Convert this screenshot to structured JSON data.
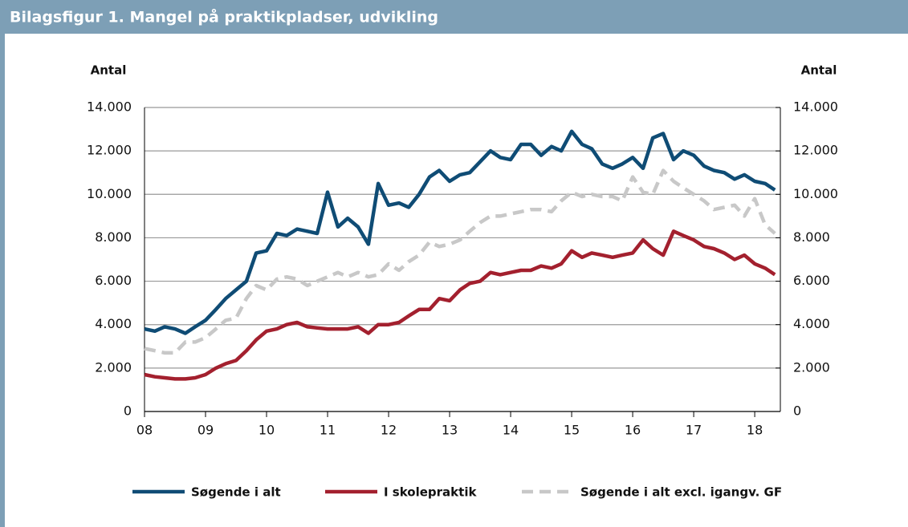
{
  "chart_data": {
    "type": "line",
    "title": "Bilagsfigur 1. Mangel på praktikpladser, udvikling",
    "y_label": "Antal",
    "y2_label": "Antal",
    "x": [
      2008,
      2008.17,
      2008.33,
      2008.5,
      2008.67,
      2008.83,
      2009,
      2009.17,
      2009.33,
      2009.5,
      2009.67,
      2009.83,
      2010,
      2010.17,
      2010.33,
      2010.5,
      2010.67,
      2010.83,
      2011,
      2011.17,
      2011.33,
      2011.5,
      2011.67,
      2011.83,
      2012,
      2012.17,
      2012.33,
      2012.5,
      2012.67,
      2012.83,
      2013,
      2013.17,
      2013.33,
      2013.5,
      2013.67,
      2013.83,
      2014,
      2014.17,
      2014.33,
      2014.5,
      2014.67,
      2014.83,
      2015,
      2015.17,
      2015.33,
      2015.5,
      2015.67,
      2015.83,
      2016,
      2016.17,
      2016.33,
      2016.5,
      2016.67,
      2016.83,
      2017,
      2017.17,
      2017.33,
      2017.5,
      2017.67,
      2017.83,
      2018,
      2018.17,
      2018.33
    ],
    "series": [
      {
        "name": "Søgende i alt",
        "color": "#0f4c75",
        "dashed": false,
        "values": [
          3800,
          3700,
          3900,
          3800,
          3600,
          3900,
          4200,
          4700,
          5200,
          5600,
          6000,
          7300,
          7400,
          8200,
          8100,
          8400,
          8300,
          8200,
          10100,
          8500,
          8900,
          8500,
          7700,
          10500,
          9500,
          9600,
          9400,
          10000,
          10800,
          11100,
          10600,
          10900,
          11000,
          11500,
          12000,
          11700,
          11600,
          12300,
          12300,
          11800,
          12200,
          12000,
          12900,
          12300,
          12100,
          11400,
          11200,
          11400,
          11700,
          11200,
          12600,
          12800,
          11600,
          12000,
          11800,
          11300,
          11100,
          11000,
          10700,
          10900,
          10600,
          10500,
          10200
        ]
      },
      {
        "name": "I skolepraktik",
        "color": "#a3202e",
        "dashed": false,
        "values": [
          1700,
          1600,
          1550,
          1500,
          1500,
          1550,
          1700,
          2000,
          2200,
          2350,
          2800,
          3300,
          3700,
          3800,
          4000,
          4100,
          3900,
          3850,
          3800,
          3800,
          3800,
          3900,
          3600,
          4000,
          4000,
          4100,
          4400,
          4700,
          4700,
          5200,
          5100,
          5600,
          5900,
          6000,
          6400,
          6300,
          6400,
          6500,
          6500,
          6700,
          6600,
          6800,
          7400,
          7100,
          7300,
          7200,
          7100,
          7200,
          7300,
          7900,
          7500,
          7200,
          8300,
          8100,
          7900,
          7600,
          7500,
          7300,
          7000,
          7200,
          6800,
          6600,
          6300
        ]
      },
      {
        "name": "Søgende i alt excl. igangv. GF",
        "color": "#c8c8c8",
        "dashed": true,
        "values": [
          2900,
          2800,
          2700,
          2700,
          3200,
          3200,
          3400,
          3800,
          4200,
          4300,
          5200,
          5800,
          5600,
          6100,
          6200,
          6100,
          5800,
          6000,
          6200,
          6400,
          6200,
          6400,
          6200,
          6300,
          6800,
          6500,
          6900,
          7200,
          7800,
          7600,
          7700,
          7900,
          8300,
          8700,
          9000,
          9000,
          9100,
          9200,
          9300,
          9300,
          9200,
          9700,
          10100,
          9900,
          10000,
          9900,
          9900,
          9700,
          10800,
          10100,
          10000,
          11100,
          10600,
          10300,
          10000,
          9700,
          9300,
          9400,
          9500,
          9000,
          9800,
          8600,
          8200
        ]
      }
    ],
    "xlim": [
      2008,
      2018.42
    ],
    "xticks": [
      {
        "value": 2008,
        "label": "08"
      },
      {
        "value": 2009,
        "label": "09"
      },
      {
        "value": 2010,
        "label": "10"
      },
      {
        "value": 2011,
        "label": "11"
      },
      {
        "value": 2012,
        "label": "12"
      },
      {
        "value": 2013,
        "label": "13"
      },
      {
        "value": 2014,
        "label": "14"
      },
      {
        "value": 2015,
        "label": "15"
      },
      {
        "value": 2016,
        "label": "16"
      },
      {
        "value": 2017,
        "label": "17"
      },
      {
        "value": 2018,
        "label": "18"
      }
    ],
    "ylim": [
      0,
      14000
    ],
    "yticks": [
      0,
      {
        "value": 2000,
        "label": "2.000"
      },
      {
        "value": 4000,
        "label": "4.000"
      },
      {
        "value": 6000,
        "label": "6.000"
      },
      {
        "value": 8000,
        "label": "8.000"
      },
      {
        "value": 10000,
        "label": "10.000"
      },
      {
        "value": 12000,
        "label": "12.000"
      },
      {
        "value": 14000,
        "label": "14.000"
      }
    ],
    "y2lim": [
      0,
      14000
    ],
    "y2ticks": [
      0,
      {
        "value": 2000,
        "label": "2.000"
      },
      {
        "value": 4000,
        "label": "4.000"
      },
      {
        "value": 6000,
        "label": "6.000"
      },
      {
        "value": 8000,
        "label": "8.000"
      },
      {
        "value": 10000,
        "label": "10.000"
      },
      {
        "value": 12000,
        "label": "12.000"
      },
      {
        "value": 14000,
        "label": "14.000"
      }
    ],
    "grid": true,
    "legend": "bottom"
  }
}
